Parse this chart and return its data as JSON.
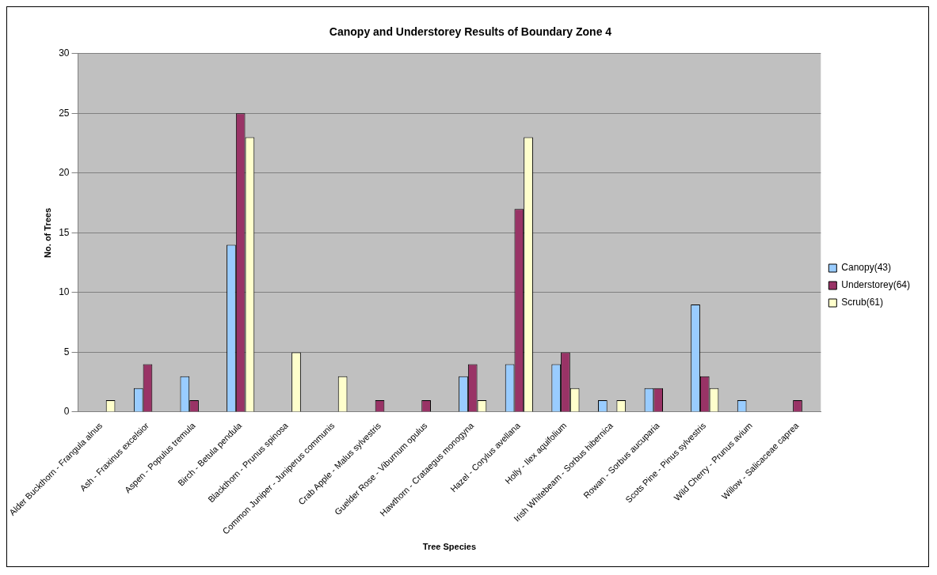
{
  "chart_data": {
    "type": "bar",
    "title": "Canopy and Understorey Results of Boundary Zone 4",
    "xlabel": "Tree Species",
    "ylabel": "No. of Trees",
    "categories": [
      "Alder Buckthorn - Frangula alnus",
      "Ash - Fraxinus excelsior",
      "Aspen - Populus tremula",
      "Birch - Betula pendula",
      "Blackthorn - Prunus spinosa",
      "Common Juniper - Juniperus communis",
      "Crab Apple - Malus sylvestris",
      "Guelder Rose - Viburnum opulus",
      "Hawthorn - Crataegus monogyna",
      "Hazel - Corylus avellana",
      "Holly - Ilex aquifolium",
      "Irish Whitebeam - Sorbus hibernica",
      "Rowan - Sorbus aucuparia",
      "Scots Pine - Pinus sylvestris",
      "Wild Cherry - Prunus avium",
      "Willow - Salicaceae caprea"
    ],
    "series": [
      {
        "name": "Canopy(43)",
        "color": "#99ccff",
        "values": [
          0,
          2,
          3,
          14,
          0,
          0,
          0,
          0,
          3,
          4,
          4,
          1,
          2,
          9,
          1,
          0
        ]
      },
      {
        "name": "Understorey(64)",
        "color": "#993366",
        "values": [
          0,
          4,
          1,
          25,
          0,
          0,
          1,
          1,
          4,
          17,
          5,
          0,
          2,
          3,
          0,
          1
        ]
      },
      {
        "name": "Scrub(61)",
        "color": "#ffffcc",
        "values": [
          1,
          0,
          0,
          23,
          5,
          3,
          0,
          0,
          1,
          23,
          2,
          1,
          0,
          2,
          0,
          0
        ]
      }
    ],
    "ylim": [
      0,
      30
    ],
    "yticks": [
      0,
      5,
      10,
      15,
      20,
      25,
      30
    ],
    "grid": "y",
    "legend": "right"
  }
}
